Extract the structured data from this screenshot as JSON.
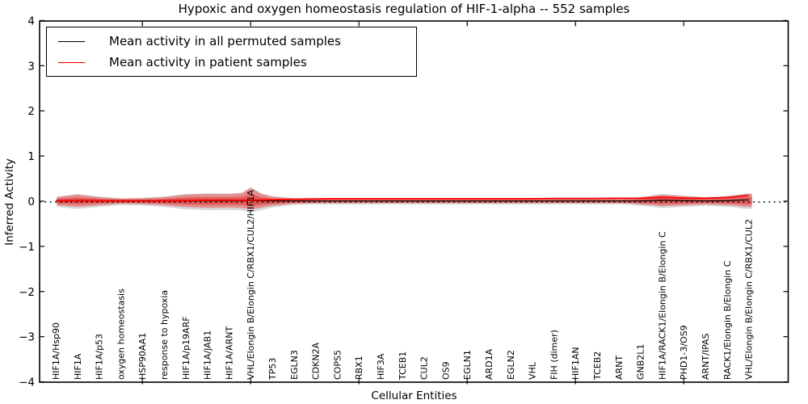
{
  "title": "Hypoxic and oxygen homeostasis regulation of HIF-1-alpha -- 552 samples",
  "legend": [
    {
      "label": "Mean activity in all permuted samples",
      "color": "#000000"
    },
    {
      "label": "Mean activity in patient samples",
      "color": "#ff0000"
    }
  ],
  "chart_data": {
    "type": "area",
    "subtype": "violin-band",
    "title": "Hypoxic and oxygen homeostasis regulation of HIF-1-alpha -- 552 samples",
    "xlabel": "Cellular Entities",
    "ylabel": "Inferred Activity",
    "ylim": [
      -4,
      4
    ],
    "ytick_values": [
      4,
      3,
      2,
      1,
      0,
      -1,
      -2,
      -3,
      -4
    ],
    "ytick_labels": [
      "4",
      "3",
      "2",
      "1",
      "0",
      "−1",
      "−2",
      "−3",
      "−4"
    ],
    "xtick_major_positions": [
      5,
      10,
      15,
      20,
      25,
      30
    ],
    "grid": false,
    "legend_position": "upper left",
    "zero_line": {
      "y": 0,
      "style": "dotted",
      "color": "#000000"
    },
    "categories": [
      "HIF1A/Hsp90",
      "HIF1A",
      "HIF1A/p53",
      "oxygen homeostasis",
      "HSP90AA1",
      "response to hypoxia",
      "HIF1A/p19ARF",
      "HIF1A/JAB1",
      "HIF1A/ARNT",
      "VHL/Elongin B/Elongin C/RBX1/CUL2/HIF1A",
      "TP53",
      "EGLN3",
      "CDKN2A",
      "COPS5",
      "RBX1",
      "HIF3A",
      "TCEB1",
      "CUL2",
      "OS9",
      "EGLN1",
      "ARD1A",
      "EGLN2",
      "VHL",
      "FIH (dimer)",
      "HIF1AN",
      "TCEB2",
      "ARNT",
      "GNB2L1",
      "HIF1A/RACK1/Elongin B/Elongin C",
      "PHD1-3/OS9",
      "ARNT/IPAS",
      "RACK1/Elongin B/Elongin C",
      "VHL/Elongin B/Elongin C/RBX1/CUL2"
    ],
    "series": [
      {
        "name": "Mean activity in all permuted samples",
        "color": "#000000",
        "values": [
          0.005,
          0.005,
          0.005,
          0.005,
          0.005,
          0.005,
          0.005,
          0.005,
          0.005,
          0.012,
          0.005,
          0.005,
          0.005,
          0.005,
          0.005,
          0.005,
          0.005,
          0.005,
          0.005,
          0.005,
          0.005,
          0.005,
          0.005,
          0.005,
          0.005,
          0.005,
          0.005,
          0.005,
          0.02,
          0.01,
          0.005,
          0.01,
          0.03
        ]
      },
      {
        "name": "Mean activity in patient samples",
        "color": "#ff0000",
        "values": [
          0.01,
          0.015,
          0.01,
          0.01,
          0.01,
          0.01,
          0.015,
          0.02,
          0.02,
          0.02,
          0.03,
          0.045,
          0.05,
          0.055,
          0.055,
          0.055,
          0.055,
          0.055,
          0.055,
          0.055,
          0.055,
          0.055,
          0.055,
          0.06,
          0.06,
          0.06,
          0.065,
          0.065,
          0.085,
          0.07,
          0.065,
          0.08,
          0.125
        ]
      }
    ],
    "violin_envelope": {
      "fill_color": "#e05050",
      "shadow_color": "#787878",
      "x": [
        1.05,
        2,
        3,
        4,
        5,
        6,
        7,
        8,
        9,
        9.6,
        10,
        10.5,
        11,
        12,
        13,
        16,
        20,
        24,
        27,
        27.6,
        28.3,
        29,
        30,
        31,
        31.6,
        32.3,
        32.9,
        33.15
      ],
      "upper": [
        0.09,
        0.145,
        0.09,
        0.055,
        0.065,
        0.09,
        0.145,
        0.16,
        0.155,
        0.175,
        0.29,
        0.16,
        0.1,
        0.055,
        0.045,
        0.045,
        0.045,
        0.045,
        0.045,
        0.06,
        0.1,
        0.145,
        0.11,
        0.08,
        0.09,
        0.12,
        0.16,
        0.155
      ],
      "lower": [
        0.09,
        0.125,
        0.09,
        0.055,
        0.065,
        0.09,
        0.13,
        0.145,
        0.14,
        0.15,
        0.185,
        0.145,
        0.1,
        0.055,
        0.045,
        0.045,
        0.045,
        0.045,
        0.045,
        0.055,
        0.08,
        0.11,
        0.09,
        0.07,
        0.08,
        0.095,
        0.125,
        0.12
      ]
    }
  }
}
